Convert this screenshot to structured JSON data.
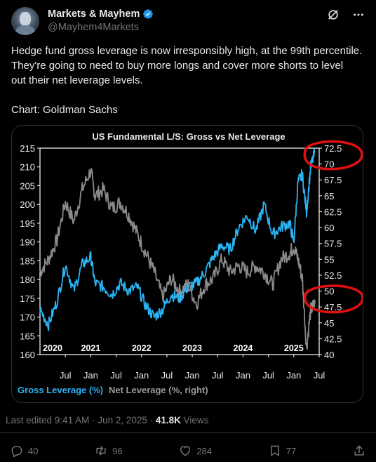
{
  "author": {
    "display_name": "Markets & Mayhem",
    "handle": "@Mayhem4Markets"
  },
  "post": {
    "text_line1": "Hedge fund gross leverage is now irresponsibly high, at the 99th percentile.",
    "text_line2": "They're going to need to buy more longs and cover more shorts to level",
    "text_line3": "out their net leverage levels.",
    "text_source": "Chart: Goldman Sachs"
  },
  "meta": {
    "edited": "Last edited 9:41 AM · Jun 2, 2025 · ",
    "views_count": "41.8K",
    "views_label": " Views"
  },
  "actions": {
    "replies": "40",
    "reposts": "96",
    "likes": "284",
    "bookmarks": "77"
  },
  "icons": [
    "verified-badge-icon",
    "grok-icon",
    "more-icon",
    "reply-icon",
    "repost-icon",
    "like-icon",
    "bookmark-icon",
    "share-icon"
  ],
  "colors": {
    "gross": "#2bb5f5",
    "net": "#8a8a8a",
    "annotation": "#e01010",
    "verified": "#1d9bf0"
  },
  "chart_data": {
    "type": "line",
    "title": "US Fundamental L/S: Gross vs Net Leverage",
    "left_axis": {
      "ylim": [
        160,
        215
      ],
      "ticks": [
        "215",
        "210",
        "205",
        "200",
        "195",
        "190",
        "185",
        "180",
        "175",
        "170",
        "165",
        "160"
      ]
    },
    "right_axis": {
      "ylim": [
        40,
        72.5
      ],
      "ticks": [
        "72.5",
        "70",
        "67.5",
        "65",
        "62.5",
        "60",
        "57.5",
        "55",
        "52.5",
        "50",
        "47.5",
        "45",
        "42.5",
        "40"
      ]
    },
    "x_month_labels": [
      "Jul",
      "Jan",
      "Jul",
      "Jan",
      "Jul",
      "Jan",
      "Jul",
      "Jan",
      "Jul",
      "Jan",
      "Jul"
    ],
    "x_year_labels": [
      "2020",
      "2021",
      "2022",
      "2023",
      "2024",
      "2025"
    ],
    "x_range": [
      "2020-01",
      "2025-07"
    ],
    "series": [
      {
        "name": "Gross Leverage (%)",
        "axis": "left",
        "x": [
          "2020-01",
          "2020-03",
          "2020-05",
          "2020-07",
          "2020-09",
          "2020-11",
          "2021-01",
          "2021-02",
          "2021-04",
          "2021-06",
          "2021-08",
          "2021-10",
          "2021-12",
          "2022-02",
          "2022-04",
          "2022-06",
          "2022-08",
          "2022-10",
          "2022-12",
          "2023-02",
          "2023-04",
          "2023-06",
          "2023-08",
          "2023-10",
          "2023-12",
          "2024-02",
          "2024-04",
          "2024-06",
          "2024-08",
          "2024-10",
          "2024-12",
          "2025-01",
          "2025-02",
          "2025-03",
          "2025-04",
          "2025-05",
          "2025-06"
        ],
        "values": [
          172,
          168,
          174,
          184,
          177,
          184,
          186,
          179,
          178,
          176,
          179,
          177,
          178,
          173,
          170,
          172,
          176,
          175,
          178,
          179,
          182,
          186,
          189,
          188,
          194,
          197,
          193,
          200,
          192,
          194,
          195,
          190,
          206,
          208,
          198,
          210,
          214
        ]
      },
      {
        "name": "Net Leverage (%, right)",
        "axis": "right",
        "x": [
          "2020-01",
          "2020-03",
          "2020-05",
          "2020-07",
          "2020-09",
          "2020-11",
          "2021-01",
          "2021-02",
          "2021-04",
          "2021-06",
          "2021-08",
          "2021-10",
          "2021-12",
          "2022-02",
          "2022-04",
          "2022-06",
          "2022-08",
          "2022-10",
          "2022-12",
          "2023-02",
          "2023-04",
          "2023-06",
          "2023-08",
          "2023-10",
          "2023-12",
          "2024-02",
          "2024-04",
          "2024-06",
          "2024-08",
          "2024-10",
          "2024-12",
          "2025-01",
          "2025-02",
          "2025-03",
          "2025-04",
          "2025-05",
          "2025-06"
        ],
        "values": [
          53,
          55,
          58,
          64,
          61,
          66,
          69,
          65,
          66,
          63,
          64,
          62,
          59,
          56,
          53,
          49,
          52,
          50,
          51,
          48,
          51,
          52,
          55,
          53,
          54,
          53,
          54,
          53,
          51,
          55,
          56,
          57,
          55,
          52,
          41,
          47,
          48
        ]
      }
    ],
    "legend": "bottom-left",
    "grid": false
  }
}
